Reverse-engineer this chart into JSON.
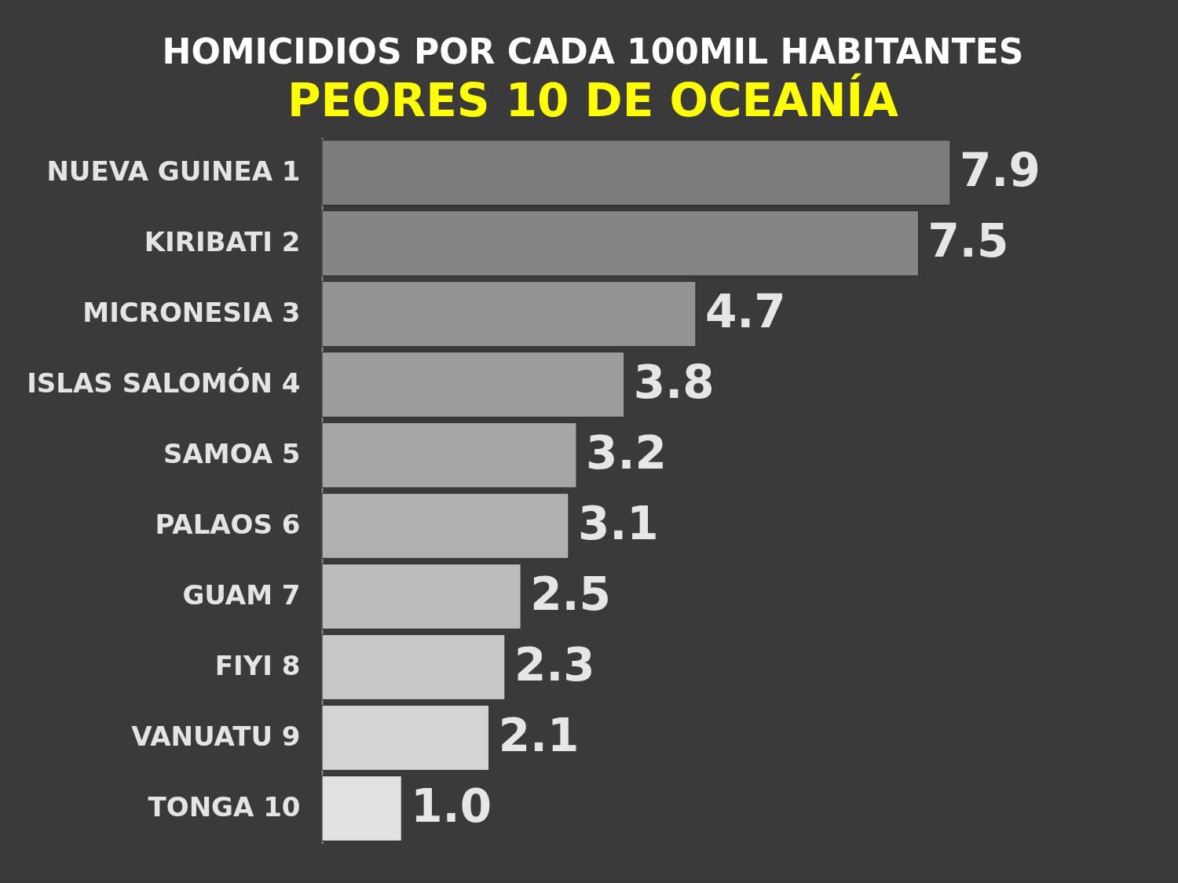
{
  "chart_data": {
    "type": "bar",
    "orientation": "horizontal",
    "title": "HOMICIDIOS POR CADA 100MIL HABITANTES",
    "subtitle": "PEORES 10 DE OCEANÍA",
    "categories": [
      "NUEVA GUINEA 1",
      "KIRIBATI 2",
      "MICRONESIA 3",
      "ISLAS SALOMÓN 4",
      "SAMOA 5",
      "PALAOS 6",
      "GUAM 7",
      "FIYI 8",
      "VANUATU 9",
      "TONGA 10"
    ],
    "values": [
      7.9,
      7.5,
      4.7,
      3.8,
      3.2,
      3.1,
      2.5,
      2.3,
      2.1,
      1.0
    ],
    "colors": [
      "#7c7c7c",
      "#858585",
      "#939393",
      "#9c9c9c",
      "#a6a6a6",
      "#b0b0b0",
      "#bcbcbc",
      "#c8c8c8",
      "#d4d4d4",
      "#e2e2e2"
    ],
    "value_labels": [
      "7.9",
      "7.5",
      "4.7",
      "3.8",
      "3.2",
      "3.1",
      "2.5",
      "2.3",
      "2.1",
      "1.0"
    ]
  }
}
